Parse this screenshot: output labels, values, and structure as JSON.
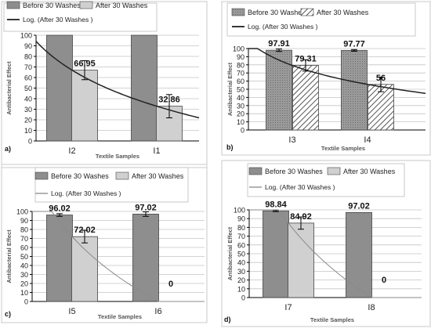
{
  "chart_data": [
    {
      "type": "bar",
      "panel_label": "a)",
      "categories": [
        "I2",
        "I1"
      ],
      "series": [
        {
          "name": "Before 30 Washes",
          "values": [
            100,
            100
          ],
          "labels": [
            "100",
            "100"
          ]
        },
        {
          "name": "After 30 Washes",
          "values": [
            66.95,
            32.86
          ],
          "labels": [
            "66.95",
            "32.86"
          ],
          "error": [
            9,
            11
          ]
        }
      ],
      "trend_name": "Log. (After 30 Washes )",
      "xlabel": "Textile Samples",
      "ylabel": "Antibacterial Effect",
      "ylim": [
        0,
        100
      ],
      "yticks": [
        "0",
        "10",
        "20",
        "30",
        "40",
        "50",
        "60",
        "70",
        "80",
        "90",
        "100"
      ],
      "legend_position": "top-left",
      "grid": true
    },
    {
      "type": "bar",
      "panel_label": "b)",
      "categories": [
        "I3",
        "I4"
      ],
      "series": [
        {
          "name": "Before 30 Washes",
          "values": [
            97.91,
            97.77
          ],
          "labels": [
            "97.91",
            "97.77"
          ],
          "error": [
            1.5,
            1
          ]
        },
        {
          "name": "After 30 Washes",
          "values": [
            79.31,
            56
          ],
          "labels": [
            "79.31",
            "56"
          ],
          "error": [
            7,
            9
          ]
        }
      ],
      "trend_name": "Log. (After 30  Washes )",
      "xlabel": "Textile Samples",
      "ylabel": "Antibacterial Effect",
      "ylim": [
        0,
        100
      ],
      "yticks": [
        "0",
        "10",
        "20",
        "30",
        "40",
        "50",
        "60",
        "70",
        "80",
        "90",
        "100"
      ],
      "legend_position": "top",
      "grid": true
    },
    {
      "type": "bar",
      "panel_label": "c)",
      "categories": [
        "I5",
        "I6"
      ],
      "series": [
        {
          "name": "Before 30 Washes",
          "values": [
            96.02,
            97.02
          ],
          "labels": [
            "96.02",
            "97.02"
          ],
          "error": [
            1.5,
            2.5
          ]
        },
        {
          "name": "After 30 Washes",
          "values": [
            72.02,
            0
          ],
          "labels": [
            "72.02",
            "0"
          ],
          "error": [
            7,
            0
          ]
        }
      ],
      "trend_name": "Log. (After 30 Washes )",
      "xlabel": "Textile Samples",
      "ylabel": "Antibacterial Effect",
      "ylim": [
        0,
        100
      ],
      "yticks": [
        "0",
        "10",
        "20",
        "30",
        "40",
        "50",
        "60",
        "70",
        "80",
        "90",
        "100"
      ],
      "legend_position": "top",
      "grid": true
    },
    {
      "type": "bar",
      "panel_label": "d)",
      "categories": [
        "I7",
        "I8"
      ],
      "series": [
        {
          "name": "Before 30 Washes",
          "values": [
            98.84,
            97.02
          ],
          "labels": [
            "98.84",
            "97.02"
          ],
          "error": [
            0.8,
            0
          ]
        },
        {
          "name": "After 30 Washes",
          "values": [
            84.92,
            0
          ],
          "labels": [
            "84.92",
            "0"
          ],
          "error": [
            7,
            0
          ]
        }
      ],
      "trend_name": "Log. (After 30  Washes )",
      "xlabel": "Textile Samples",
      "ylabel": "Antibacterial Effect",
      "ylim": [
        0,
        100
      ],
      "yticks": [
        "0",
        "10",
        "20",
        "30",
        "40",
        "50",
        "60",
        "70",
        "80",
        "90",
        "100"
      ],
      "legend_position": "top",
      "grid": true
    }
  ],
  "colors": {
    "before_fill": "#8e8e8e",
    "after_fill": "#d0d0d0",
    "hatch_line": "#555555",
    "trend_line": "#222222",
    "trend_line_light": "#8a8a8a",
    "grid": "#c4c4c4",
    "axis": "#000000",
    "text": "#222222",
    "panel_border": "#c8c8c8"
  }
}
